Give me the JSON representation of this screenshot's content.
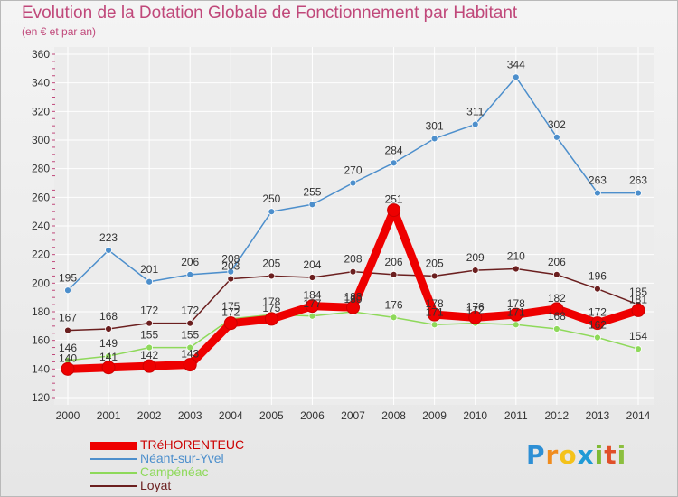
{
  "header": {
    "title": "Evolution de la Dotation Globale de Fonctionnement par Habitant",
    "subtitle": "(en € et par an)"
  },
  "logo": {
    "text": "Proxiti"
  },
  "colors": {
    "background": "#ececec",
    "grid": "#ffffff",
    "axis_text": "#333333",
    "title": "#c0487a"
  },
  "chart_data": {
    "type": "line",
    "title": "Evolution de la Dotation Globale de Fonctionnement par Habitant",
    "subtitle": "(en € et par an)",
    "xlabel": "",
    "ylabel": "",
    "x": [
      "2000",
      "2001",
      "2002",
      "2003",
      "2004",
      "2005",
      "2006",
      "2007",
      "2008",
      "2009",
      "2010",
      "2011",
      "2012",
      "2013",
      "2014"
    ],
    "yticks": [
      120,
      140,
      160,
      180,
      200,
      220,
      240,
      260,
      280,
      300,
      320,
      340,
      360
    ],
    "ylim": [
      120,
      360
    ],
    "grid": true,
    "legend_position": "bottom-left",
    "series": [
      {
        "name": "TRéHORENTEUC",
        "color": "#ee0000",
        "values": [
          140,
          141,
          142,
          143,
          172,
          175,
          184,
          183,
          251,
          178,
          176,
          178,
          182,
          172,
          181
        ]
      },
      {
        "name": "Néant-sur-Yvel",
        "color": "#4d8fcc",
        "values": [
          195,
          223,
          201,
          206,
          208,
          250,
          255,
          270,
          284,
          301,
          311,
          344,
          302,
          263,
          263
        ]
      },
      {
        "name": "Campénéac",
        "color": "#8ed95a",
        "values": [
          146,
          149,
          155,
          155,
          175,
          178,
          177,
          180,
          176,
          171,
          172,
          171,
          168,
          162,
          154
        ]
      },
      {
        "name": "Loyat",
        "color": "#6b1f1f",
        "values": [
          167,
          168,
          172,
          172,
          203,
          205,
          204,
          208,
          206,
          205,
          209,
          210,
          206,
          196,
          185
        ]
      }
    ],
    "data_labels": {
      "TRéHORENTEUC": [
        "140",
        "141",
        "142",
        "143",
        "172",
        "175",
        "184",
        "183",
        "251",
        "178",
        "176",
        "178",
        "182",
        "172",
        "181"
      ],
      "Néant-sur-Yvel": [
        "195",
        "223",
        "201",
        "206",
        "208",
        "250",
        "255",
        "270",
        "284",
        "301",
        "311",
        "344",
        "302",
        "263",
        "263"
      ],
      "Campénéac": [
        "146",
        "149",
        "155",
        "155",
        "175",
        "178",
        "177",
        "180",
        "176",
        "171",
        "172",
        "171",
        "168",
        "162",
        "154"
      ],
      "Loyat": [
        "167",
        "168",
        "172",
        "172",
        "203",
        "205",
        "204",
        "208",
        "206",
        "205",
        "209",
        "210",
        "206",
        "196",
        "185"
      ]
    }
  }
}
